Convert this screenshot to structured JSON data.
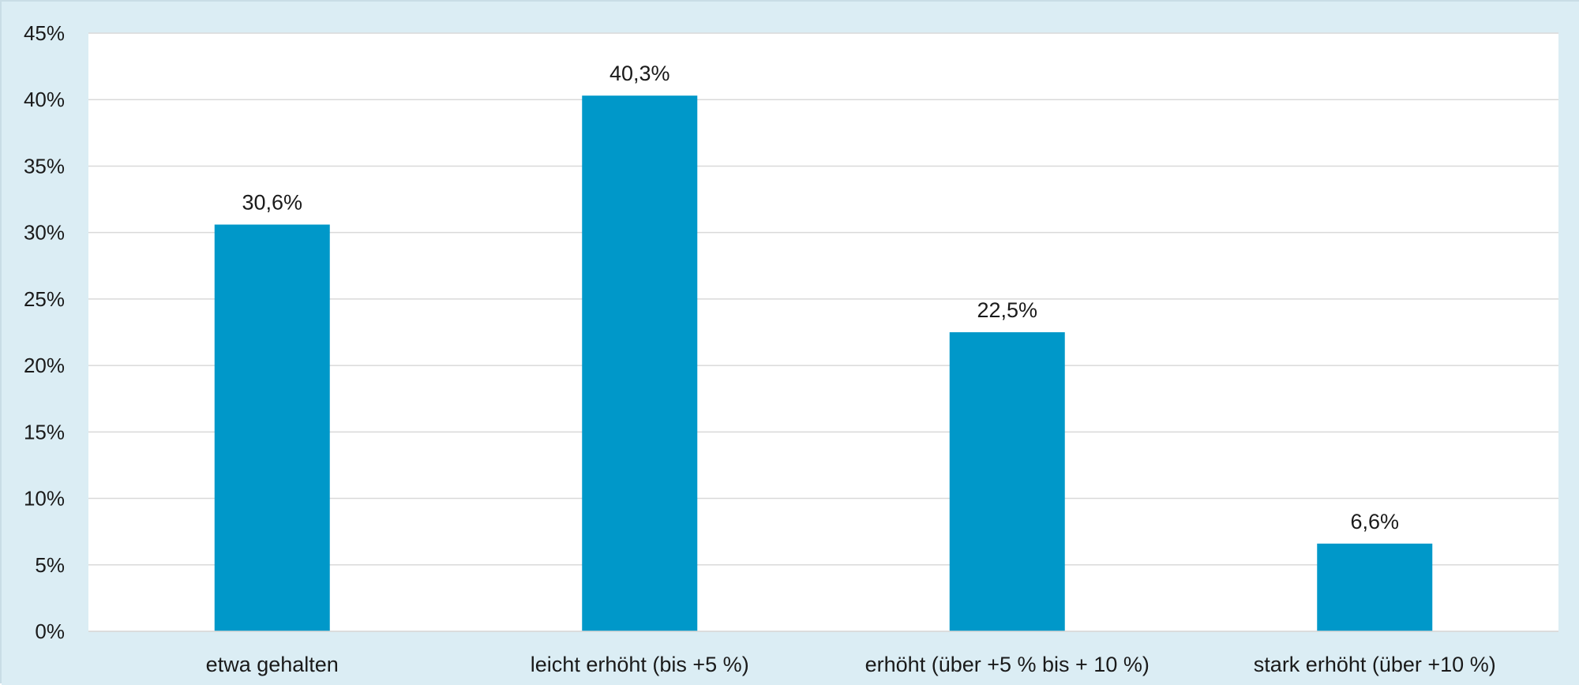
{
  "chart_data": {
    "type": "bar",
    "categories": [
      "etwa gehalten",
      "leicht erhöht (bis +5 %)",
      "erhöht (über +5 % bis + 10 %)",
      "stark erhöht (über +10 %)"
    ],
    "values": [
      30.6,
      40.3,
      22.5,
      6.6
    ],
    "data_labels": [
      "30,6%",
      "40,3%",
      "22,5%",
      "6,6%"
    ],
    "title": "",
    "xlabel": "",
    "ylabel": "",
    "ylim": [
      0,
      45
    ],
    "yticks": [
      0,
      5,
      10,
      15,
      20,
      25,
      30,
      35,
      40,
      45
    ],
    "ytick_labels": [
      "0%",
      "5%",
      "10%",
      "15%",
      "20%",
      "25%",
      "30%",
      "35%",
      "40%",
      "45%"
    ],
    "grid": true,
    "legend": "none",
    "colors": {
      "bar": "#0098c9",
      "background": "#dbedf4",
      "plot_area": "#ffffff",
      "gridline": "#d9d9d9"
    }
  }
}
